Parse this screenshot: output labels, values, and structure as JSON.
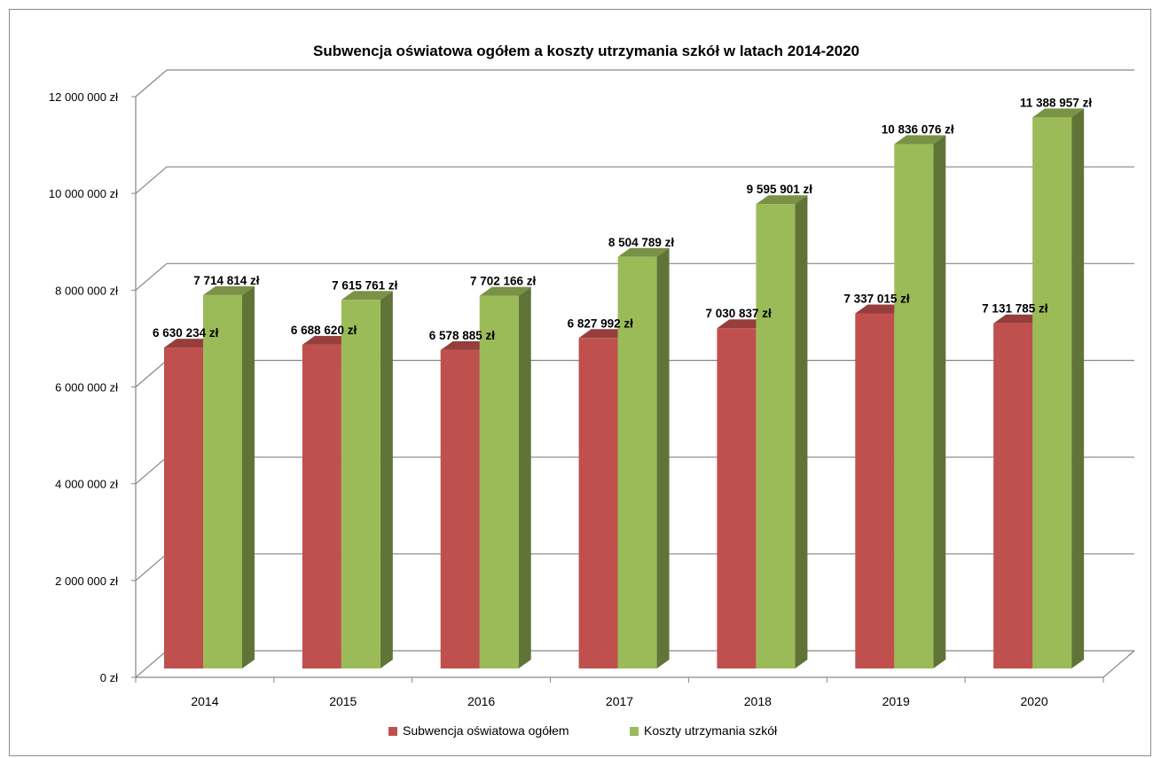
{
  "chart_data": {
    "type": "bar",
    "title": "Subwencja oświatowa ogółem a koszty utrzymania szkół w latach 2014-2020",
    "categories": [
      "2014",
      "2015",
      "2016",
      "2017",
      "2018",
      "2019",
      "2020"
    ],
    "series": [
      {
        "name": "Subwencja oświatowa ogółem",
        "color": "#C0504D",
        "values": [
          6630234,
          6688620,
          6578885,
          6827992,
          7030837,
          7337015,
          7131785
        ],
        "labels": [
          "6 630 234 zł",
          "6 688 620 zł",
          "6 578 885 zł",
          "6 827 992 zł",
          "7 030 837 zł",
          "7 337 015 zł",
          "7 131 785 zł"
        ]
      },
      {
        "name": "Koszty utrzymania szkół",
        "color": "#9BBB59",
        "values": [
          7714814,
          7615761,
          7702166,
          8504789,
          9595901,
          10836076,
          11388957
        ],
        "labels": [
          "7 714 814 zł",
          "7 615 761 zł",
          "7 702 166 zł",
          "8 504 789 zł",
          "9 595 901 zł",
          "10 836 076 zł",
          "11 388 957 zł"
        ]
      }
    ],
    "ylim": [
      0,
      12000000
    ],
    "yticks": [
      0,
      2000000,
      4000000,
      6000000,
      8000000,
      10000000,
      12000000
    ],
    "ytick_labels": [
      "0 zł",
      "2 000 000 zł",
      "4 000 000 zł",
      "6 000 000 zł",
      "8 000 000 zł",
      "10 000 000 zł",
      "12 000 000 zł"
    ],
    "grid": true,
    "legend_position": "bottom",
    "style": "3d-clustered-column"
  }
}
